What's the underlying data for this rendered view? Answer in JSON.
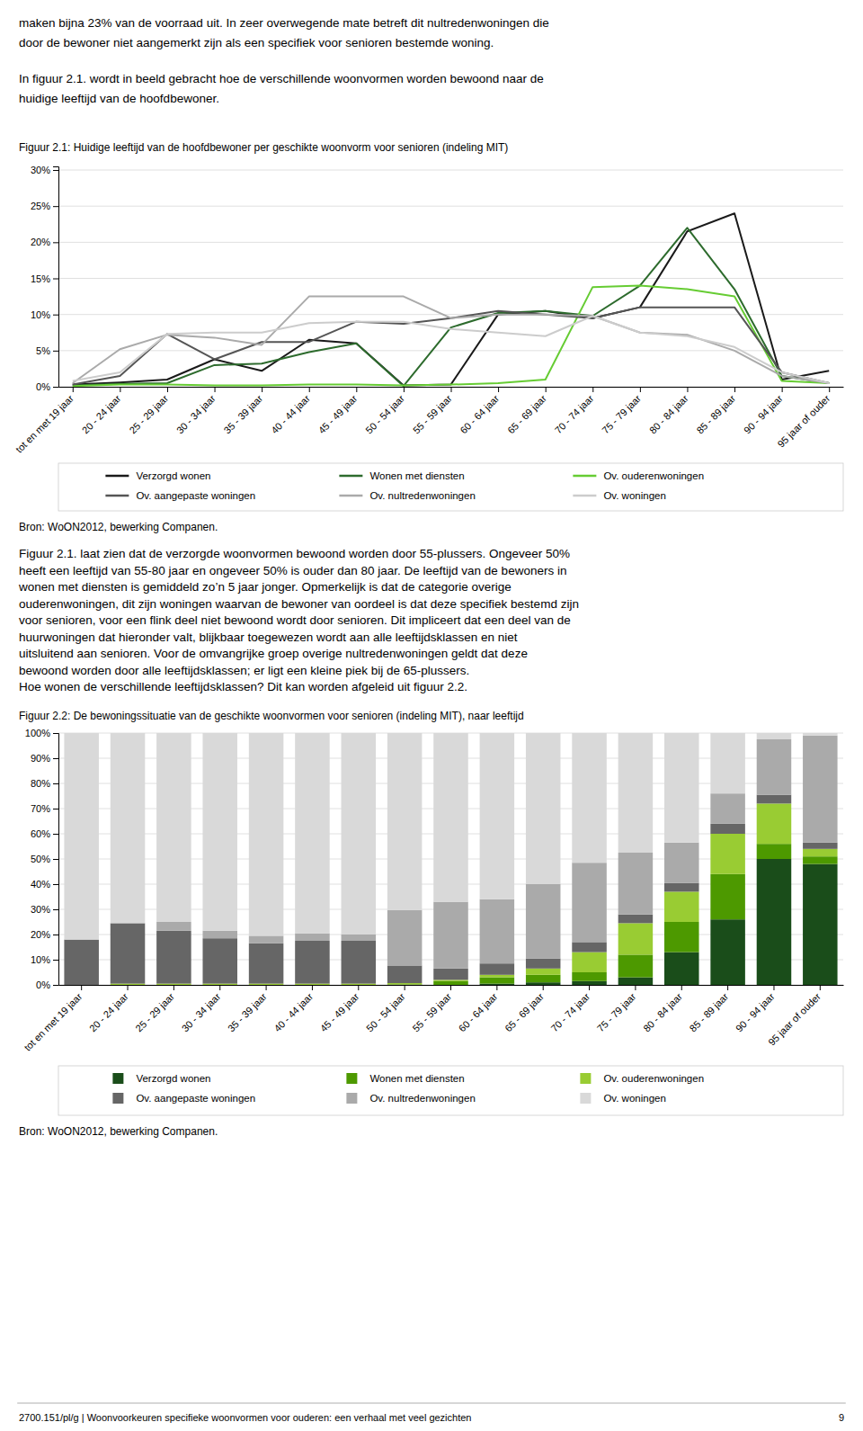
{
  "page_text": {
    "intro": [
      [
        "maken bijna 23% van de voorraad uit. In zeer overwegende mate betreft dit nultredenwoningen die",
        "door de bewoner niet aangemerkt zijn als een specifiek voor senioren bestemde woning."
      ],
      [
        "In figuur 2.1. wordt in beeld gebracht hoe de verschillende woonvormen worden bewoond naar de",
        "huidige leeftijd van de hoofdbewoner."
      ]
    ],
    "middle": [
      "Figuur 2.1. laat zien dat de verzorgde woonvormen bewoond worden door 55-plussers. Ongeveer 50%",
      "heeft een leeftijd van 55-80 jaar en ongeveer 50% is ouder dan 80 jaar. De leeftijd van de bewoners in",
      "wonen met diensten is gemiddeld zo’n 5 jaar jonger. Opmerkelijk is dat de categorie overige",
      "ouderenwoningen, dit zijn woningen waarvan de bewoner van oordeel is dat deze specifiek bestemd zijn",
      "voor senioren, voor een flink deel niet bewoond wordt door senioren. Dit impliceert dat een deel van de",
      "huurwoningen dat hieronder valt, blijkbaar toegewezen wordt aan alle leeftijdsklassen en niet",
      "uitsluitend aan senioren. Voor de omvangrijke groep overige nultredenwoningen geldt dat deze",
      "bewoond worden door alle leeftijdsklassen; er ligt een kleine piek bij de 65-plussers.",
      "Hoe wonen de verschillende leeftijdsklassen? Dit kan worden afgeleid uit figuur 2.2."
    ],
    "footer": "2700.151/pl/g  |  Woonvoorkeuren specifieke woonvormen voor ouderen: een verhaal met veel gezichten",
    "page_number": "9"
  },
  "chart_data": [
    {
      "type": "line",
      "title": "Figuur 2.1: Huidige leeftijd van de hoofdbewoner per geschikte woonvorm voor senioren (indeling MIT)",
      "annotations": [
        "Bron: WoON2012, bewerking Companen."
      ],
      "categories": [
        "tot en met 19 jaar",
        "20 - 24 jaar",
        "25 - 29 jaar",
        "30 - 34 jaar",
        "35 - 39 jaar",
        "40 - 44 jaar",
        "45 - 49 jaar",
        "50 - 54 jaar",
        "55 - 59 jaar",
        "60 - 64 jaar",
        "65 - 69 jaar",
        "70 - 74 jaar",
        "75 - 79 jaar",
        "80 - 84 jaar",
        "85 - 89 jaar",
        "90 - 94 jaar",
        "95 jaar of ouder"
      ],
      "series": [
        {
          "name": "Verzorgd wonen",
          "color": "#1a1a1a",
          "values": [
            0.3,
            0.6,
            1.0,
            3.8,
            2.2,
            6.5,
            6.0,
            0.2,
            0.3,
            10.0,
            10.5,
            9.5,
            11.0,
            21.5,
            24.0,
            1.0,
            2.2
          ]
        },
        {
          "name": "Wonen met diensten",
          "color": "#2d6b2d",
          "values": [
            0.2,
            0.4,
            0.5,
            3.0,
            3.2,
            4.8,
            6.0,
            0.1,
            8.2,
            10.2,
            10.5,
            9.8,
            14.0,
            22.0,
            13.5,
            1.5,
            0.5
          ]
        },
        {
          "name": "Ov. ouderenwoningen",
          "color": "#66cc33",
          "values": [
            0.1,
            0.3,
            0.3,
            0.2,
            0.2,
            0.3,
            0.3,
            0.2,
            0.3,
            0.5,
            1.0,
            13.8,
            14.0,
            13.5,
            12.5,
            0.8,
            0.5
          ]
        },
        {
          "name": "Ov. aangepaste woningen",
          "color": "#555555",
          "values": [
            0.3,
            1.5,
            7.3,
            3.8,
            6.2,
            6.2,
            9.0,
            8.7,
            9.5,
            10.5,
            10.0,
            9.5,
            11.0,
            11.0,
            11.0,
            2.0,
            0.5
          ]
        },
        {
          "name": "Ov. nultredenwoningen",
          "color": "#aaaaaa",
          "values": [
            0.5,
            5.2,
            7.2,
            6.8,
            5.8,
            12.5,
            12.5,
            12.5,
            9.5,
            10.0,
            10.0,
            9.8,
            7.5,
            7.2,
            5.0,
            1.5,
            0.5
          ]
        },
        {
          "name": "Ov. woningen",
          "color": "#cccccc",
          "values": [
            0.8,
            2.0,
            7.3,
            7.5,
            7.5,
            8.8,
            9.0,
            9.0,
            8.0,
            7.5,
            7.0,
            9.8,
            7.5,
            7.0,
            5.5,
            2.0,
            0.5
          ]
        }
      ],
      "ylim": [
        0,
        30.5
      ],
      "yticks": [
        {
          "value": 0,
          "label": "0%"
        },
        {
          "value": 5,
          "label": "5%"
        },
        {
          "value": 10,
          "label": "10%"
        },
        {
          "value": 15,
          "label": "15%"
        },
        {
          "value": 20,
          "label": "20%"
        },
        {
          "value": 25,
          "label": "25%"
        },
        {
          "value": 30,
          "label": "30%"
        }
      ],
      "grid": true,
      "legend": "bottom"
    },
    {
      "type": "bar",
      "stacked": true,
      "title": "Figuur 2.2: De bewoningssituatie van de geschikte woonvormen voor senioren (indeling MIT), naar leeftijd",
      "annotations": [
        "Bron: WoON2012, bewerking Companen."
      ],
      "categories": [
        "tot en met 19 jaar",
        "20 - 24 jaar",
        "25 - 29 jaar",
        "30 - 34 jaar",
        "35 - 39 jaar",
        "40 - 44 jaar",
        "45 - 49 jaar",
        "50 - 54 jaar",
        "55 - 59 jaar",
        "60 - 64 jaar",
        "65 - 69 jaar",
        "70 - 74 jaar",
        "75 - 79 jaar",
        "80 - 84 jaar",
        "85 - 89 jaar",
        "90 - 94 jaar",
        "95 jaar of ouder"
      ],
      "series": [
        {
          "name": "Verzorgd wonen",
          "color": "#1a4d1a",
          "values": [
            0.0,
            0.0,
            0.0,
            0.0,
            0.0,
            0.0,
            0.0,
            0.0,
            0.0,
            0.5,
            1.0,
            1.5,
            3.0,
            13.0,
            26.0,
            50.0,
            48.0
          ]
        },
        {
          "name": "Wonen met diensten",
          "color": "#4d9900",
          "values": [
            0.0,
            0.0,
            0.0,
            0.0,
            0.0,
            0.0,
            0.0,
            0.2,
            1.5,
            2.5,
            3.0,
            3.5,
            9.0,
            12.0,
            18.0,
            6.0,
            3.0
          ]
        },
        {
          "name": "Ov. ouderenwoningen",
          "color": "#99cc33",
          "values": [
            0.0,
            0.5,
            0.5,
            0.5,
            0.5,
            0.5,
            0.5,
            0.5,
            0.5,
            1.0,
            2.5,
            8.0,
            12.5,
            12.0,
            16.0,
            16.0,
            3.0
          ]
        },
        {
          "name": "Ov. aangepaste woningen",
          "color": "#666666",
          "values": [
            18.0,
            24.0,
            21.0,
            18.0,
            16.0,
            17.0,
            17.0,
            7.0,
            4.5,
            4.5,
            4.0,
            4.0,
            3.5,
            3.5,
            4.0,
            3.5,
            2.5
          ]
        },
        {
          "name": "Ov. nultredenwoningen",
          "color": "#aaaaaa",
          "values": [
            0.0,
            0.0,
            3.5,
            3.0,
            3.0,
            3.0,
            2.5,
            22.0,
            26.5,
            25.5,
            29.5,
            31.5,
            24.5,
            16.0,
            12.0,
            22.0,
            42.5
          ]
        },
        {
          "name": "Ov. woningen",
          "color": "#d9d9d9",
          "values": [
            82.0,
            75.5,
            75.0,
            78.5,
            80.5,
            79.5,
            80.0,
            70.3,
            67.0,
            66.0,
            60.0,
            51.5,
            47.5,
            43.5,
            24.0,
            2.5,
            1.0
          ]
        }
      ],
      "ylim": [
        0,
        100
      ],
      "yticks": [
        {
          "value": 0,
          "label": "0%"
        },
        {
          "value": 10,
          "label": "10%"
        },
        {
          "value": 20,
          "label": "20%"
        },
        {
          "value": 30,
          "label": "30%"
        },
        {
          "value": 40,
          "label": "40%"
        },
        {
          "value": 50,
          "label": "50%"
        },
        {
          "value": 60,
          "label": "60%"
        },
        {
          "value": 70,
          "label": "70%"
        },
        {
          "value": 80,
          "label": "80%"
        },
        {
          "value": 90,
          "label": "90%"
        },
        {
          "value": 100,
          "label": "100%"
        }
      ],
      "grid": true,
      "legend": "bottom"
    }
  ]
}
